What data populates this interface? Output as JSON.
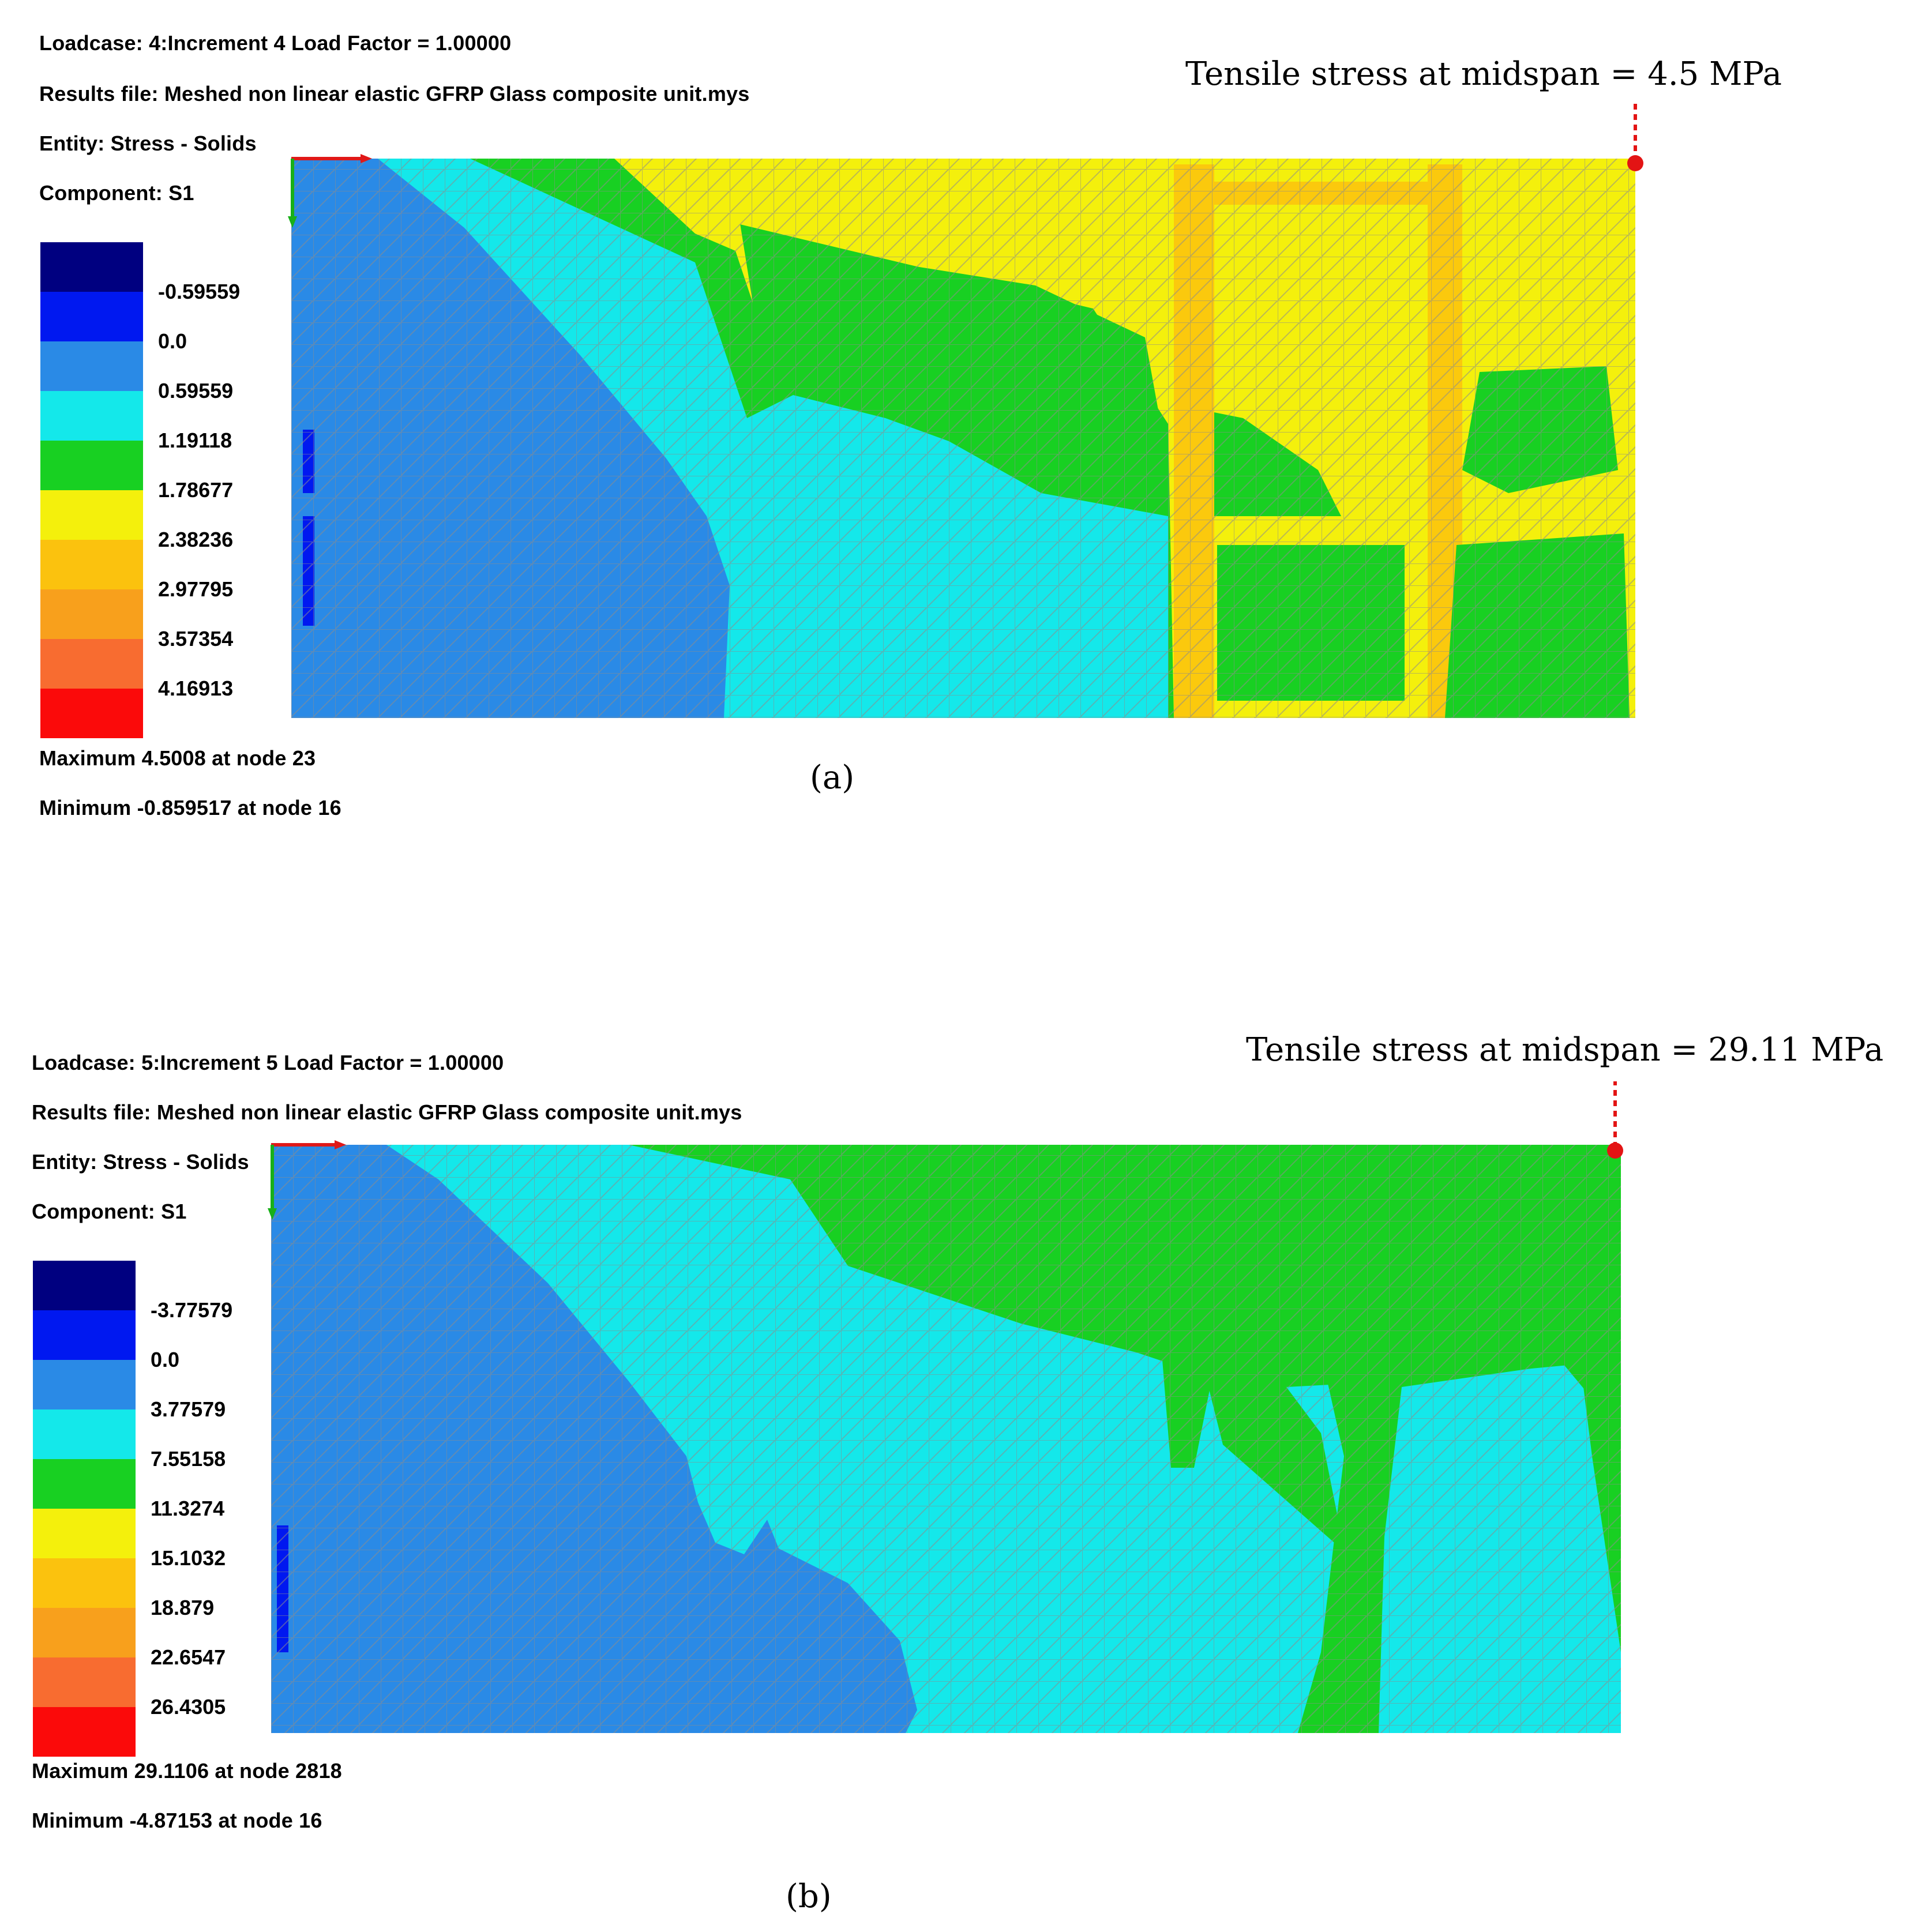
{
  "colors": {
    "legend": [
      "#000080",
      "#0018f0",
      "#2a8ae6",
      "#14e8ea",
      "#18d022",
      "#f4f00c",
      "#fbc20e",
      "#f8a01c",
      "#f86c30",
      "#fb0a0a"
    ],
    "mesh": "#8c8c8c",
    "marker": "#e31414",
    "axis_x": "#e01818",
    "axis_y": "#18b018"
  },
  "panels": [
    {
      "caption": "(a)",
      "loadcase": "Loadcase: 4:Increment 4 Load Factor = 1.00000",
      "results_file": "Results file: Meshed non linear elastic GFRP Glass composite unit.mys",
      "entity": "Entity: Stress - Solids",
      "component": "Component: S1",
      "legend_values": [
        "-0.59559",
        "0.0",
        "0.59559",
        "1.19118",
        "1.78677",
        "2.38236",
        "2.97795",
        "3.57354",
        "4.16913"
      ],
      "maximum": "Maximum 4.5008 at node 23",
      "minimum": "Minimum -0.859517 at node 16",
      "annotation": "Tensile stress at midspan = 4.5  MPa"
    },
    {
      "caption": "(b)",
      "loadcase": "Loadcase: 5:Increment 5 Load Factor = 1.00000",
      "results_file": "Results file: Meshed non linear elastic GFRP Glass composite unit.mys",
      "entity": "Entity: Stress - Solids",
      "component": "Component: S1",
      "legend_values": [
        "-3.77579",
        "0.0",
        "3.77579",
        "7.55158",
        "11.3274",
        "15.1032",
        "18.879",
        "22.6547",
        "26.4305"
      ],
      "maximum": "Maximum 29.1106 at node 2818",
      "minimum": "Minimum -4.87153 at node 16",
      "annotation": "Tensile stress at midspan = 29.11  MPa"
    }
  ]
}
